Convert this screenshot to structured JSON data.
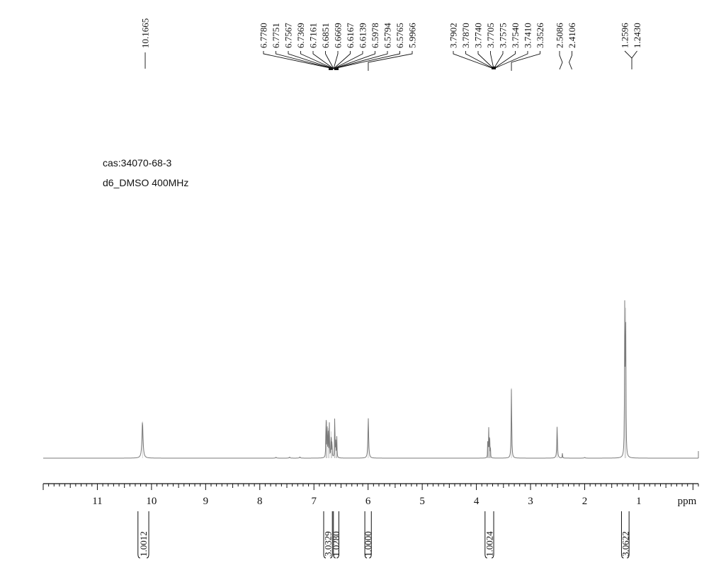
{
  "sample": {
    "cas_line": "cas:34070-68-3",
    "solvent_line": "d6_DMSO 400MHz"
  },
  "chart_data": {
    "type": "line",
    "title": "",
    "xlabel": "ppm",
    "ylabel": "",
    "x_reversed": true,
    "xlim": [
      12.0,
      -0.1
    ],
    "x_ticks": [
      11,
      10,
      9,
      8,
      7,
      6,
      5,
      4,
      3,
      2,
      1
    ],
    "grid": false,
    "line_color": "#7a7a7a",
    "peak_labels": {
      "groups": [
        {
          "labels": [
            "10.1665"
          ],
          "anchor_ppm": 10.1665
        },
        {
          "labels": [
            "6.7780",
            "6.7751",
            "6.7567",
            "6.7369",
            "6.7161",
            "6.6851",
            "6.6669",
            "6.6167",
            "6.6139",
            "6.5978",
            "6.5794",
            "6.5765",
            "5.9966"
          ]
        },
        {
          "labels": [
            "3.7902",
            "3.7870",
            "3.7740",
            "3.7705",
            "3.7575",
            "3.7540",
            "3.7410",
            "3.3526"
          ]
        },
        {
          "labels": [
            "2.5086",
            "2.4106"
          ]
        },
        {
          "labels": [
            "1.2596",
            "1.2430"
          ]
        }
      ]
    },
    "integrals": [
      {
        "value": "1.0012",
        "from_ppm": 10.25,
        "to_ppm": 10.05
      },
      {
        "value": "3.0329",
        "from_ppm": 6.82,
        "to_ppm": 6.66
      },
      {
        "value": "1.0280",
        "from_ppm": 6.64,
        "to_ppm": 6.54
      },
      {
        "value": "1.0000",
        "from_ppm": 6.06,
        "to_ppm": 5.94
      },
      {
        "value": "1.0024",
        "from_ppm": 3.84,
        "to_ppm": 3.68
      },
      {
        "value": "3.0622",
        "from_ppm": 1.32,
        "to_ppm": 1.18
      }
    ],
    "peaks": [
      {
        "ppm": 10.1665,
        "height": 0.22,
        "width": 0.012
      },
      {
        "ppm": 6.778,
        "height": 0.14,
        "width": 0.004
      },
      {
        "ppm": 6.7751,
        "height": 0.15,
        "width": 0.004
      },
      {
        "ppm": 6.7567,
        "height": 0.22,
        "width": 0.004
      },
      {
        "ppm": 6.7369,
        "height": 0.18,
        "width": 0.004
      },
      {
        "ppm": 6.7161,
        "height": 0.21,
        "width": 0.004
      },
      {
        "ppm": 6.6851,
        "height": 0.16,
        "width": 0.004
      },
      {
        "ppm": 6.6669,
        "height": 0.12,
        "width": 0.004
      },
      {
        "ppm": 6.6167,
        "height": 0.14,
        "width": 0.004
      },
      {
        "ppm": 6.6139,
        "height": 0.15,
        "width": 0.004
      },
      {
        "ppm": 6.5978,
        "height": 0.09,
        "width": 0.004
      },
      {
        "ppm": 6.5794,
        "height": 0.07,
        "width": 0.004
      },
      {
        "ppm": 6.5765,
        "height": 0.07,
        "width": 0.004
      },
      {
        "ppm": 5.9966,
        "height": 0.24,
        "width": 0.008
      },
      {
        "ppm": 3.7902,
        "height": 0.08,
        "width": 0.003
      },
      {
        "ppm": 3.787,
        "height": 0.09,
        "width": 0.003
      },
      {
        "ppm": 3.774,
        "height": 0.11,
        "width": 0.003
      },
      {
        "ppm": 3.7705,
        "height": 0.12,
        "width": 0.003
      },
      {
        "ppm": 3.7575,
        "height": 0.1,
        "width": 0.003
      },
      {
        "ppm": 3.754,
        "height": 0.1,
        "width": 0.003
      },
      {
        "ppm": 3.741,
        "height": 0.07,
        "width": 0.003
      },
      {
        "ppm": 3.3526,
        "height": 0.42,
        "width": 0.006
      },
      {
        "ppm": 2.5086,
        "height": 0.19,
        "width": 0.007
      },
      {
        "ppm": 2.4106,
        "height": 0.03,
        "width": 0.004
      },
      {
        "ppm": 1.2596,
        "height": 0.9,
        "width": 0.005
      },
      {
        "ppm": 1.243,
        "height": 0.9,
        "width": 0.005
      },
      {
        "ppm": 7.7,
        "height": 0.005,
        "width": 0.01
      },
      {
        "ppm": 7.45,
        "height": 0.006,
        "width": 0.01
      },
      {
        "ppm": 7.26,
        "height": 0.007,
        "width": 0.01
      },
      {
        "ppm": 2.0,
        "height": 0.004,
        "width": 0.01
      }
    ]
  }
}
